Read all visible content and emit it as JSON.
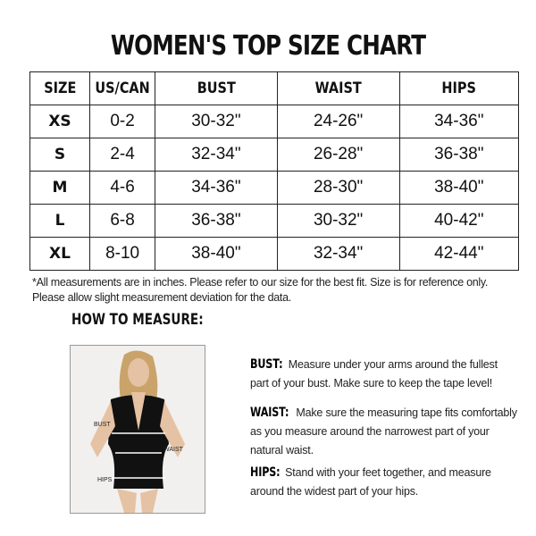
{
  "title": "WOMEN'S TOP SIZE CHART",
  "table": {
    "headers": [
      "SIZE",
      "US/CAN",
      "BUST",
      "WAIST",
      "HIPS"
    ],
    "rows": [
      [
        "XS",
        "0-2",
        "30-32\"",
        "24-26\"",
        "34-36\""
      ],
      [
        "S",
        "2-4",
        "32-34\"",
        "26-28\"",
        "36-38\""
      ],
      [
        "M",
        "4-6",
        "34-36\"",
        "28-30\"",
        "38-40\""
      ],
      [
        "L",
        "6-8",
        "36-38\"",
        "30-32\"",
        "40-42\""
      ],
      [
        "XL",
        "8-10",
        "38-40\"",
        "32-34\"",
        "42-44\""
      ]
    ]
  },
  "note": "*All measurements are in inches. Please refer to our size for the best fit. Size is for reference only. Please allow slight measurement deviation for the data.",
  "how_to": {
    "heading": "HOW TO MEASURE:",
    "photo_labels": {
      "bust": "BUST",
      "waist": "WAIST",
      "hips": "HIPS"
    },
    "sections": [
      {
        "label": "BUST:",
        "text": "Measure under your arms around the fullest part of your bust. Make sure to keep the tape level!"
      },
      {
        "label": "WAIST:",
        "text": "Make sure the measuring tape fits comfortably as you measure around the narrowest part of your natural waist."
      },
      {
        "label": "HIPS:",
        "text": "Stand with your feet together, and measure around the widest part of your hips."
      }
    ]
  }
}
